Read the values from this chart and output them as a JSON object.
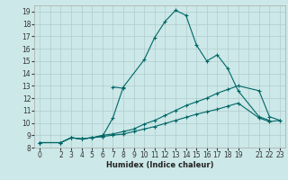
{
  "xlabel": "Humidex (Indice chaleur)",
  "bg_color": "#cce8e8",
  "grid_color": "#b0cccc",
  "line_color": "#006666",
  "xlim": [
    -0.5,
    23.5
  ],
  "ylim": [
    8,
    19.5
  ],
  "xticks": [
    0,
    2,
    3,
    4,
    5,
    6,
    7,
    8,
    9,
    10,
    11,
    12,
    13,
    14,
    15,
    16,
    17,
    18,
    19,
    21,
    22,
    23
  ],
  "yticks": [
    8,
    9,
    10,
    11,
    12,
    13,
    14,
    15,
    16,
    17,
    18,
    19
  ],
  "xgrid": [
    0,
    1,
    2,
    3,
    4,
    5,
    6,
    7,
    8,
    9,
    10,
    11,
    12,
    13,
    14,
    15,
    16,
    17,
    18,
    19,
    20,
    21,
    22,
    23
  ],
  "ygrid": [
    8,
    9,
    10,
    11,
    12,
    13,
    14,
    15,
    16,
    17,
    18,
    19
  ],
  "lines": [
    {
      "x": [
        0,
        2,
        3,
        4,
        5,
        6,
        7,
        8,
        10,
        11,
        12,
        13,
        14,
        15,
        16,
        17,
        18,
        19,
        21,
        22
      ],
      "y": [
        8.4,
        8.4,
        8.8,
        8.7,
        8.8,
        8.9,
        10.4,
        12.9,
        15.1,
        16.9,
        18.2,
        19.1,
        18.7,
        16.3,
        15.0,
        15.5,
        14.4,
        12.6,
        10.5,
        10.2
      ]
    },
    {
      "x": [
        7,
        8
      ],
      "y": [
        12.9,
        12.8
      ]
    },
    {
      "x": [
        0,
        2,
        3,
        4,
        5,
        6,
        7,
        8,
        9,
        10,
        11,
        12,
        13,
        14,
        15,
        16,
        17,
        18,
        19,
        21,
        22,
        23
      ],
      "y": [
        8.4,
        8.4,
        8.8,
        8.7,
        8.8,
        9.0,
        9.1,
        9.3,
        9.5,
        9.9,
        10.2,
        10.6,
        11.0,
        11.4,
        11.7,
        12.0,
        12.4,
        12.7,
        13.0,
        12.6,
        10.5,
        10.2
      ]
    },
    {
      "x": [
        0,
        2,
        3,
        4,
        5,
        6,
        7,
        8,
        9,
        10,
        11,
        12,
        13,
        14,
        15,
        16,
        17,
        18,
        19,
        21,
        22,
        23
      ],
      "y": [
        8.4,
        8.4,
        8.8,
        8.7,
        8.8,
        8.9,
        9.0,
        9.1,
        9.3,
        9.5,
        9.7,
        9.95,
        10.2,
        10.45,
        10.7,
        10.9,
        11.1,
        11.35,
        11.6,
        10.4,
        10.1,
        10.2
      ]
    }
  ]
}
